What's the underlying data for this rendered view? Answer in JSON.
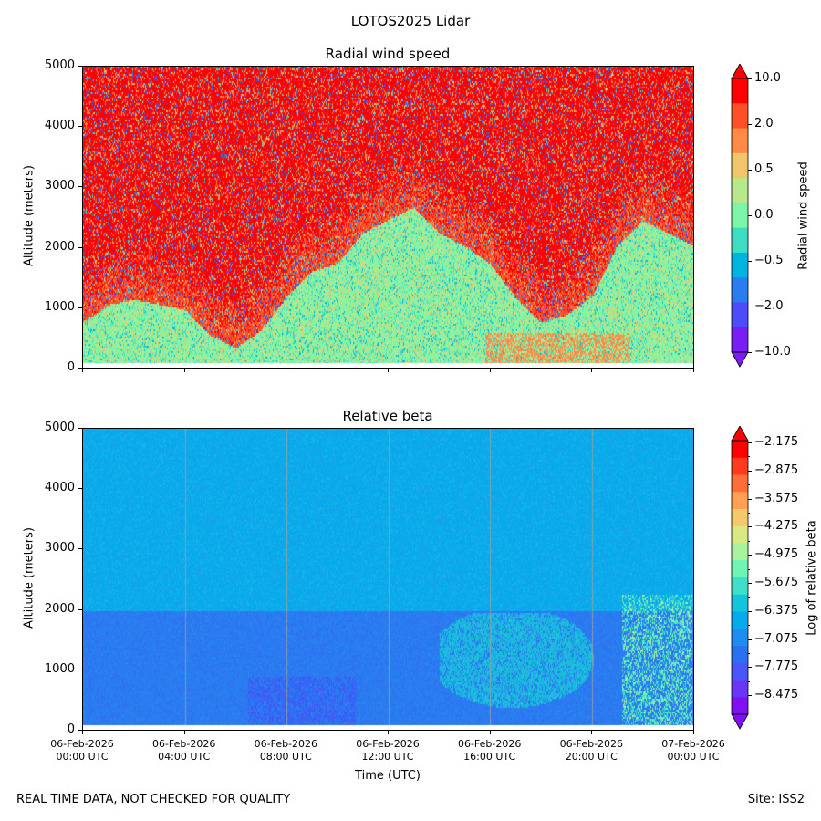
{
  "figure": {
    "suptitle": "LOTOS2025 Lidar",
    "footer_left": "REAL TIME DATA, NOT CHECKED FOR QUALITY",
    "footer_right": "Site: ISS2"
  },
  "chart_data": [
    {
      "type": "heatmap",
      "title": "Radial wind speed",
      "xlabel": "",
      "ylabel": "Altitude (meters)",
      "ylim": [
        0,
        5000
      ],
      "yticks": [
        0,
        1000,
        2000,
        3000,
        4000,
        5000
      ],
      "colorbar": {
        "label": "Radial wind speed",
        "tick_labels": [
          "10.0",
          "2.0",
          "0.5",
          "0.0",
          "−0.5",
          "−2.0",
          "−10.0"
        ],
        "colors": [
          "#ff0000",
          "#ff4f28",
          "#ff8a46",
          "#f2c46b",
          "#b7e88a",
          "#7df5a8",
          "#3fdcc4",
          "#00b4e0",
          "#2a7cf0",
          "#4c4cf8",
          "#7a1cf4"
        ]
      },
      "description": "Near surface (below ~1000 m) values near 0.0 to 0.5; above, predominantly 10.0 with interspersed negative values"
    },
    {
      "type": "heatmap",
      "title": "Relative beta",
      "xlabel": "Time (UTC)",
      "ylabel": "Altitude (meters)",
      "ylim": [
        0,
        5000
      ],
      "yticks": [
        0,
        1000,
        2000,
        3000,
        4000,
        5000
      ],
      "xtick_labels": [
        [
          "06-Feb-2026",
          "00:00 UTC"
        ],
        [
          "06-Feb-2026",
          "04:00 UTC"
        ],
        [
          "06-Feb-2026",
          "08:00 UTC"
        ],
        [
          "06-Feb-2026",
          "12:00 UTC"
        ],
        [
          "06-Feb-2026",
          "16:00 UTC"
        ],
        [
          "06-Feb-2026",
          "20:00 UTC"
        ],
        [
          "07-Feb-2026",
          "00:00 UTC"
        ]
      ],
      "colorbar": {
        "label": "Log of relative beta",
        "tick_labels": [
          "−2.175",
          "−2.875",
          "−3.575",
          "−4.275",
          "−4.975",
          "−5.675",
          "−6.375",
          "−7.075",
          "−7.775",
          "−8.475"
        ],
        "vmin": -9.0,
        "vmax": -1.9
      },
      "description": "Mostly -7.0 (cyan) aloft, -7.8 (blue) below 2000 m, patches of -6.4 to -5.7 near 20:00-23:30 UTC"
    }
  ]
}
